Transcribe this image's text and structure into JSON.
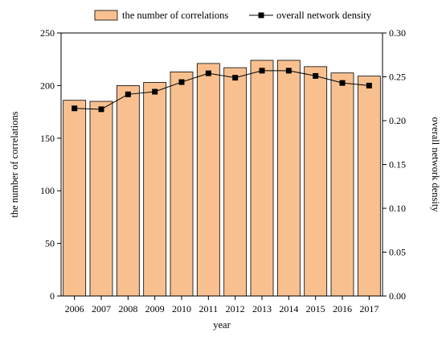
{
  "chart_data": {
    "type": "bar+line",
    "categories": [
      "2006",
      "2007",
      "2008",
      "2009",
      "2010",
      "2011",
      "2012",
      "2013",
      "2014",
      "2015",
      "2016",
      "2017"
    ],
    "series": [
      {
        "name": "the number of correlations",
        "type": "bar",
        "axis": "left",
        "color": "#f9c08f",
        "values": [
          186,
          185,
          200,
          203,
          213,
          221,
          217,
          224,
          224,
          218,
          212,
          209
        ]
      },
      {
        "name": "overall network density",
        "type": "line",
        "axis": "right",
        "color": "#000000",
        "values": [
          0.214,
          0.213,
          0.23,
          0.233,
          0.244,
          0.254,
          0.249,
          0.257,
          0.257,
          0.251,
          0.243,
          0.24
        ]
      }
    ],
    "xlabel": "year",
    "ylabel_left": "the number of correlations",
    "ylabel_right": "overall network density",
    "ylim_left": [
      0,
      250
    ],
    "ylim_right": [
      0,
      0.3
    ],
    "yticks_left": [
      "0",
      "50",
      "100",
      "150",
      "200",
      "250"
    ],
    "yticks_right": [
      "0.00",
      "0.05",
      "0.10",
      "0.15",
      "0.20",
      "0.25",
      "0.30"
    ],
    "legend_position": "top",
    "grid": false
  }
}
